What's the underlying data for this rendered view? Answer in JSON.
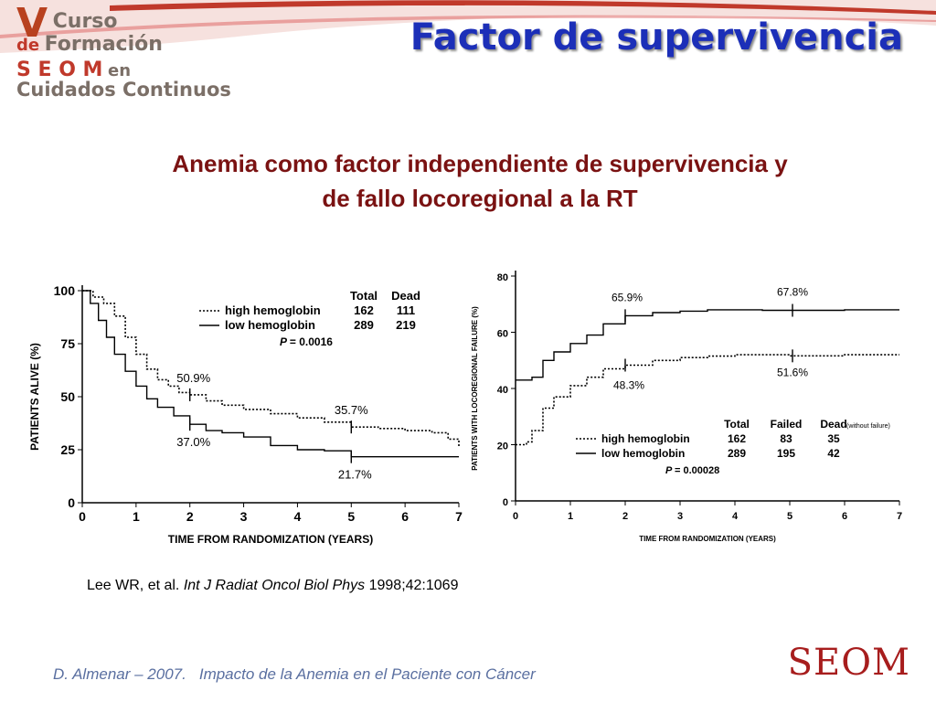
{
  "header": {
    "logo": {
      "line1_big": "V",
      "line1_rest": "Curso",
      "line2_small": "de",
      "line2_rest": "Formación",
      "line3": "S E O M",
      "line3_en": "en",
      "line4": "Cuidados Continuos"
    },
    "title": "Factor de supervivencia",
    "subtitle_line1": "Anemia como factor independiente de supervivencia y",
    "subtitle_line2": "de fallo locoregional a la RT"
  },
  "reference": {
    "author": "Lee WR, et al.",
    "journal": "Int J Radiat Oncol Biol Phys",
    "citation": "1998;42:1069"
  },
  "footer": {
    "author": "D. Almenar – 2007.",
    "topic": "Impacto de la Anemia en el Paciente con Cáncer",
    "brand": "SEOM"
  },
  "colors": {
    "title": "#1c2fb8",
    "subtitle": "#7a1212",
    "footer": "#5a6fa0",
    "brand": "#a71d1d",
    "banner": "#d9534f"
  },
  "chart_data": [
    {
      "type": "line",
      "ylabel": "PATIENTS ALIVE (%)",
      "xlabel": "TIME FROM RANDOMIZATION (YEARS)",
      "xlim": [
        0,
        7
      ],
      "ylim": [
        0,
        100
      ],
      "xticks": [
        "0",
        "1",
        "2",
        "3",
        "4",
        "5",
        "6",
        "7"
      ],
      "yticks": [
        "0",
        "25",
        "50",
        "75",
        "100"
      ],
      "legend": {
        "headers": [
          "Total",
          "Dead"
        ],
        "rows": [
          {
            "name": "high hemoglobin",
            "total": "162",
            "dead": "111"
          },
          {
            "name": "low hemoglobin",
            "total": "289",
            "dead": "219"
          }
        ],
        "pvalue": "= 0.0016",
        "pvalue_label": "P"
      },
      "series": [
        {
          "name": "high hemoglobin",
          "style": "dotted",
          "x": [
            0,
            0.2,
            0.4,
            0.6,
            0.8,
            1.0,
            1.2,
            1.4,
            1.6,
            1.8,
            2.0,
            2.3,
            2.6,
            3.0,
            3.5,
            4.0,
            4.5,
            5.0,
            5.5,
            6.0,
            6.5,
            6.8,
            7.0
          ],
          "y": [
            100,
            97,
            94,
            88,
            78,
            70,
            63,
            58,
            55,
            52,
            50.9,
            48,
            46,
            44,
            42,
            40,
            38,
            35.7,
            35,
            34,
            33,
            30,
            26
          ]
        },
        {
          "name": "low hemoglobin",
          "style": "solid",
          "x": [
            0,
            0.15,
            0.3,
            0.45,
            0.6,
            0.8,
            1.0,
            1.2,
            1.4,
            1.7,
            2.0,
            2.3,
            2.6,
            3.0,
            3.5,
            4.0,
            4.5,
            5.0,
            5.5,
            6.0,
            6.5,
            7.0
          ],
          "y": [
            100,
            94,
            86,
            78,
            70,
            62,
            55,
            49,
            45,
            41,
            37.0,
            34,
            33,
            31,
            27,
            25,
            24.5,
            21.7,
            21.7,
            21.7,
            21.7,
            21.7
          ]
        }
      ],
      "annotations": [
        "50.9%",
        "37.0%",
        "35.7%",
        "21.7%"
      ]
    },
    {
      "type": "line",
      "ylabel": "PATIENTS WITH LOCOREGIONAL FAILURE (%)",
      "xlabel": "TIME FROM RANDOMIZATION (YEARS)",
      "xlim": [
        0,
        7
      ],
      "ylim": [
        0,
        80
      ],
      "xticks": [
        "0",
        "1",
        "2",
        "3",
        "4",
        "5",
        "6",
        "7"
      ],
      "yticks": [
        "0",
        "20",
        "40",
        "60",
        "80"
      ],
      "legend": {
        "headers": [
          "Total",
          "Failed",
          "Dead"
        ],
        "dead_note": "(without failure)",
        "rows": [
          {
            "name": "high hemoglobin",
            "total": "162",
            "failed": "83",
            "dead": "35"
          },
          {
            "name": "low hemoglobin",
            "total": "289",
            "failed": "195",
            "dead": "42"
          }
        ],
        "pvalue": "= 0.00028",
        "pvalue_label": "P"
      },
      "series": [
        {
          "name": "high hemoglobin",
          "style": "dotted",
          "x": [
            0,
            0.2,
            0.3,
            0.5,
            0.7,
            1.0,
            1.3,
            1.6,
            2.0,
            2.5,
            3.0,
            3.5,
            4.0,
            5.0,
            6.0,
            7.0
          ],
          "y": [
            20,
            21,
            25,
            33,
            37,
            41,
            44,
            47,
            48.3,
            50,
            51,
            51.5,
            52,
            51.6,
            52,
            52
          ]
        },
        {
          "name": "low hemoglobin",
          "style": "solid",
          "x": [
            0,
            0.3,
            0.5,
            0.7,
            1.0,
            1.3,
            1.6,
            2.0,
            2.5,
            3.0,
            3.5,
            4.0,
            4.5,
            5.0,
            6.0,
            7.0
          ],
          "y": [
            43,
            44,
            50,
            53,
            56,
            59,
            63,
            65.9,
            67,
            67.5,
            68,
            68,
            67.8,
            67.8,
            68,
            68
          ]
        }
      ],
      "annotations": [
        "65.9%",
        "48.3%",
        "67.8%",
        "51.6%"
      ]
    }
  ]
}
